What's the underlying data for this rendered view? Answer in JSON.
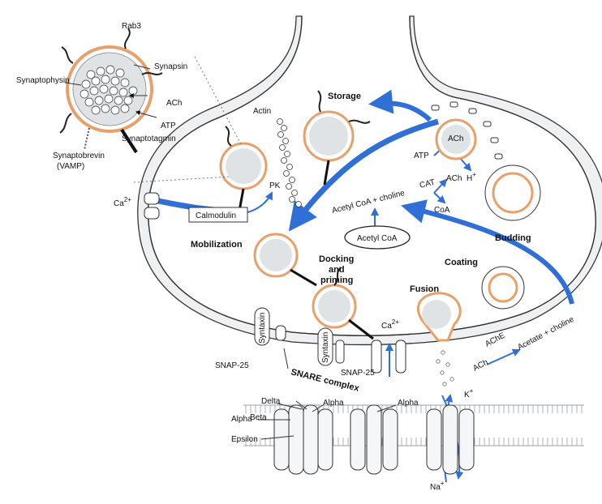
{
  "colors": {
    "arrow": "#2f6fd6",
    "membrane_fill": "#eef0f2",
    "membrane_line": "#333333",
    "vesicle_rim": "#e8a06a",
    "background": "#ffffff"
  },
  "labels": {
    "rab3": "Rab3",
    "synaptophysin": "Synaptophysin",
    "synapsin": "Synapsin",
    "ach_vesicle": "ACh",
    "atp_vesicle": "ATP",
    "synaptotagmin": "Synaptotagmin",
    "synaptobrevin": "Synaptobrevin",
    "vamp": "(VAMP)",
    "actin": "Actin",
    "storage": "Storage",
    "ca_left": "Ca",
    "ca_left_sup": "2+",
    "calmodulin": "Calmodulin",
    "pk": "PK",
    "atp_right": "ATP",
    "ach_right_vesicle": "ACh",
    "ach_right": "ACh",
    "h_plus": "H",
    "h_plus_sup": "+",
    "acetylcoa_choline": "Acetyl CoA + choline",
    "cat": "CAT",
    "coa": "CoA",
    "acetylcoa_mito": "Acetyl CoA",
    "budding": "Budding",
    "mobilization": "Mobilization",
    "docking": "Docking",
    "and": "and",
    "priming": "priming",
    "coating": "Coating",
    "fusion": "Fusion",
    "ca_right": "Ca",
    "ca_right_sup": "2+",
    "syntaxin_left": "Syntaxin",
    "snap25_left": "SNAP-25",
    "syntaxin_center": "Syntaxin",
    "snap25_center": "SNAP-25",
    "snare_complex": "SNARE complex",
    "ach_cleft": "ACh",
    "ache": "AChE",
    "acetate_choline": "Acetate + choline",
    "delta": "Delta",
    "beta": "Beta",
    "alpha_left": "Alpha",
    "alpha_center": "Alpha",
    "alpha_right": "Alpha",
    "epsilon": "Epsilon",
    "k_plus": "K",
    "k_plus_sup": "+",
    "na_plus": "Na",
    "na_plus_sup": "+"
  }
}
